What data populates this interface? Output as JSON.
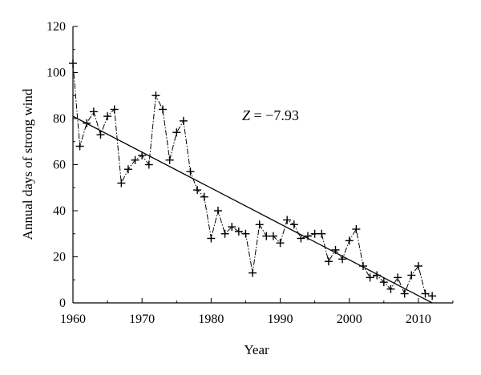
{
  "chart_data": {
    "type": "line",
    "xlabel": "Year",
    "ylabel": "Annual days of strong wind",
    "xlim": [
      1960,
      2015
    ],
    "ylim": [
      0,
      120
    ],
    "xticks": [
      1960,
      1970,
      1980,
      1990,
      2000,
      2010
    ],
    "yticks": [
      0,
      20,
      40,
      60,
      80,
      100,
      120
    ],
    "grid": false,
    "annotation": {
      "italic": "Z",
      "rest": " = −7.93"
    },
    "series": [
      {
        "marker": "plus",
        "line_style": "dash-dot",
        "x": [
          1960,
          1961,
          1962,
          1963,
          1964,
          1965,
          1966,
          1967,
          1968,
          1969,
          1970,
          1971,
          1972,
          1973,
          1974,
          1975,
          1976,
          1977,
          1978,
          1979,
          1980,
          1981,
          1982,
          1983,
          1984,
          1985,
          1986,
          1987,
          1988,
          1989,
          1990,
          1991,
          1992,
          1993,
          1994,
          1995,
          1996,
          1997,
          1998,
          1999,
          2000,
          2001,
          2002,
          2003,
          2004,
          2005,
          2006,
          2007,
          2008,
          2009,
          2010,
          2011,
          2012
        ],
        "values": [
          104,
          68,
          78,
          83,
          73,
          81,
          84,
          52,
          58,
          62,
          64,
          60,
          90,
          84,
          62,
          74,
          79,
          57,
          49,
          46,
          28,
          40,
          30,
          33,
          31,
          30,
          13,
          34,
          29,
          29,
          26,
          36,
          34,
          28,
          29,
          30,
          30,
          18,
          23,
          19,
          27,
          32,
          16,
          11,
          12,
          9,
          6,
          11,
          4,
          12,
          16,
          4,
          3
        ]
      },
      {
        "type": "trend",
        "x": [
          1960,
          2012
        ],
        "values": [
          81,
          0
        ]
      }
    ]
  }
}
